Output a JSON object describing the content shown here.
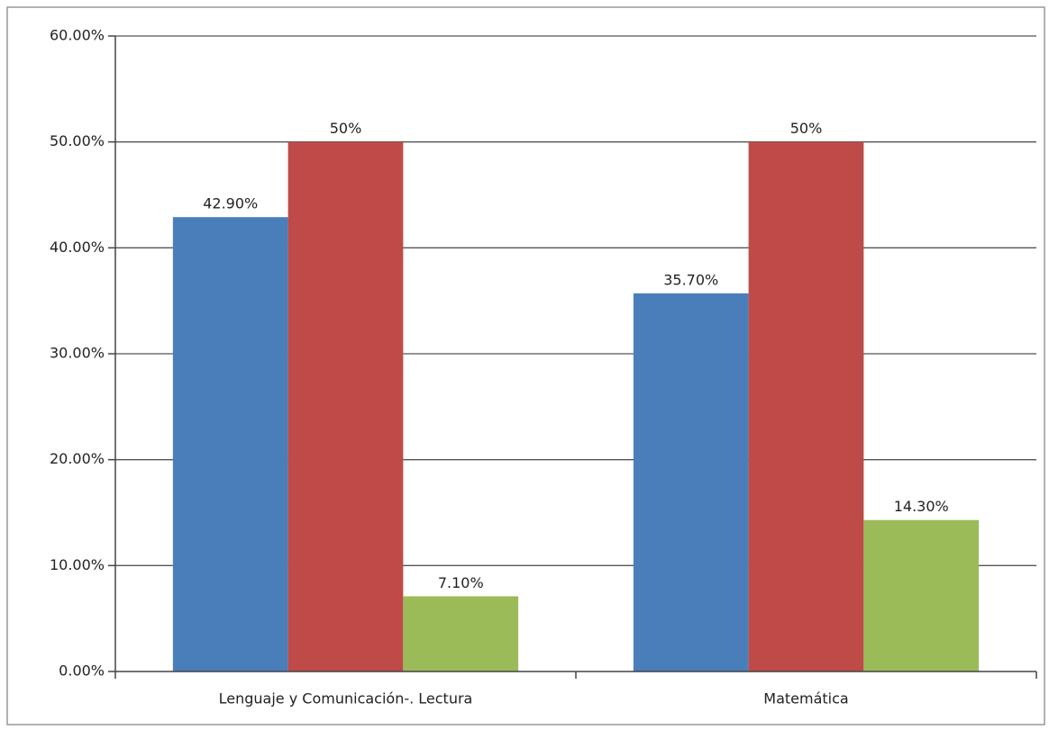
{
  "chart_data": {
    "type": "bar",
    "categories": [
      "Lenguaje y Comunicación-. Lectura",
      "Matemática"
    ],
    "series": [
      {
        "color": "#4a7ebb",
        "values": [
          42.9,
          35.7
        ],
        "value_labels": [
          "42.90%",
          "35.70%"
        ]
      },
      {
        "color": "#be4b48",
        "values": [
          50,
          50
        ],
        "value_labels": [
          "50%",
          "50%"
        ]
      },
      {
        "color": "#9bbb59",
        "values": [
          7.1,
          14.3
        ],
        "value_labels": [
          "7.10%",
          "14.30%"
        ]
      }
    ],
    "ylim": [
      0,
      60
    ],
    "yticks": [
      {
        "value": 0,
        "label": "0.00%"
      },
      {
        "value": 10,
        "label": "10.00%"
      },
      {
        "value": 20,
        "label": "20.00%"
      },
      {
        "value": 30,
        "label": "30.00%"
      },
      {
        "value": 40,
        "label": "40.00%"
      },
      {
        "value": 50,
        "label": "50.00%"
      },
      {
        "value": 60,
        "label": "60.00%"
      }
    ],
    "grid": true
  }
}
